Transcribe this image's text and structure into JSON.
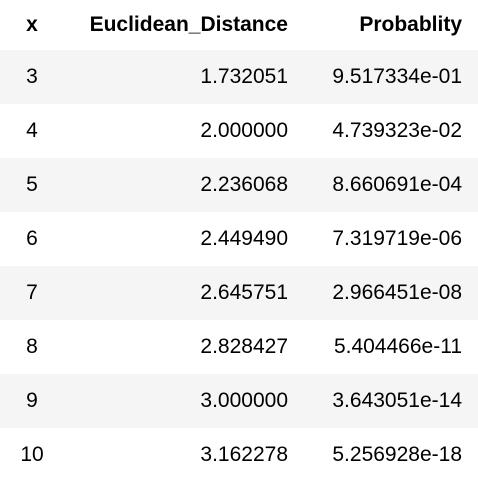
{
  "table": {
    "columns": [
      "x",
      "Euclidean_Distance",
      "Probablity"
    ],
    "rows": [
      [
        "3",
        "1.732051",
        "9.517334e-01"
      ],
      [
        "4",
        "2.000000",
        "4.739323e-02"
      ],
      [
        "5",
        "2.236068",
        "8.660691e-04"
      ],
      [
        "6",
        "2.449490",
        "7.319719e-06"
      ],
      [
        "7",
        "2.645751",
        "2.966451e-08"
      ],
      [
        "8",
        "2.828427",
        "5.404466e-11"
      ],
      [
        "9",
        "3.000000",
        "3.643051e-14"
      ],
      [
        "10",
        "3.162278",
        "5.256928e-18"
      ]
    ]
  }
}
